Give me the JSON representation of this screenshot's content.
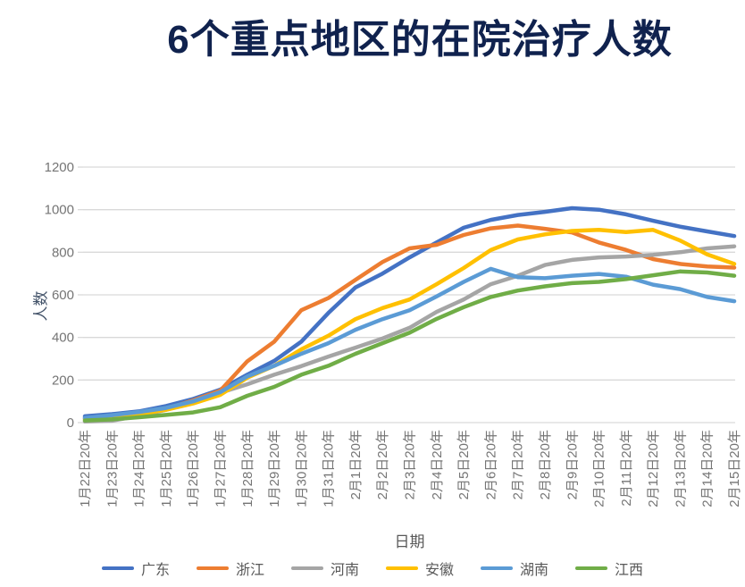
{
  "title": {
    "text": "6个重点地区的在院治疗人数",
    "color": "#10224E"
  },
  "axes": {
    "x_title": "日期",
    "y_title": "人数",
    "y_tick_labels": [
      "0",
      "200",
      "400",
      "600",
      "800",
      "1000",
      "1200"
    ]
  },
  "colors": {
    "grid": "#D9D9D9",
    "tick_text": "#757575",
    "x_axis_title_text": "#595959",
    "y_axis_title_text": "#44546A",
    "background": "#FFFFFF"
  },
  "chart_data": {
    "type": "line",
    "title": "6个重点地区的在院治疗人数",
    "xlabel": "日期",
    "ylabel": "人数",
    "ylim": [
      0,
      1200
    ],
    "y_ticks": [
      0,
      200,
      400,
      600,
      800,
      1000,
      1200
    ],
    "grid": true,
    "legend_position": "bottom",
    "categories": [
      "1月22日20年",
      "1月23日20年",
      "1月24日20年",
      "1月25日20年",
      "1月26日20年",
      "1月27日20年",
      "1月28日20年",
      "1月29日20年",
      "1月30日20年",
      "1月31日20年",
      "2月1日20年",
      "2月2日20年",
      "2月3日20年",
      "2月4日20年",
      "2月5日20年",
      "2月6日20年",
      "2月7日20年",
      "2月8日20年",
      "2月9日20年",
      "2月10日20年",
      "2月11日20年",
      "2月12日20年",
      "2月13日20年",
      "2月14日20年",
      "2月15日20年"
    ],
    "series": [
      {
        "name": "广东",
        "color": "#4472C4",
        "values": [
          30,
          40,
          53,
          78,
          111,
          155,
          225,
          290,
          380,
          515,
          635,
          700,
          776,
          846,
          915,
          952,
          975,
          990,
          1007,
          1000,
          978,
          948,
          920,
          898,
          876
        ]
      },
      {
        "name": "浙江",
        "color": "#ED7D31",
        "values": [
          20,
          28,
          45,
          64,
          104,
          150,
          288,
          380,
          528,
          585,
          670,
          754,
          818,
          835,
          881,
          912,
          925,
          910,
          893,
          846,
          811,
          768,
          745,
          733,
          728
        ]
      },
      {
        "name": "河南",
        "color": "#A5A5A5",
        "values": [
          5,
          9,
          32,
          60,
          100,
          140,
          180,
          225,
          265,
          310,
          352,
          395,
          445,
          520,
          578,
          650,
          690,
          740,
          764,
          776,
          780,
          788,
          800,
          818,
          828
        ]
      },
      {
        "name": "安徽",
        "color": "#FFC000",
        "values": [
          15,
          22,
          40,
          60,
          90,
          130,
          211,
          267,
          344,
          408,
          486,
          538,
          578,
          650,
          726,
          810,
          860,
          884,
          900,
          905,
          895,
          905,
          855,
          790,
          745
        ]
      },
      {
        "name": "湖南",
        "color": "#5B9BD5",
        "values": [
          22,
          35,
          50,
          69,
          100,
          143,
          217,
          267,
          323,
          373,
          436,
          486,
          528,
          593,
          661,
          722,
          683,
          678,
          690,
          698,
          685,
          648,
          627,
          590,
          570
        ]
      },
      {
        "name": "江西",
        "color": "#70AD47",
        "values": [
          10,
          15,
          25,
          36,
          48,
          72,
          126,
          168,
          225,
          267,
          323,
          373,
          422,
          487,
          542,
          590,
          620,
          640,
          655,
          661,
          674,
          692,
          710,
          705,
          690
        ]
      }
    ]
  }
}
